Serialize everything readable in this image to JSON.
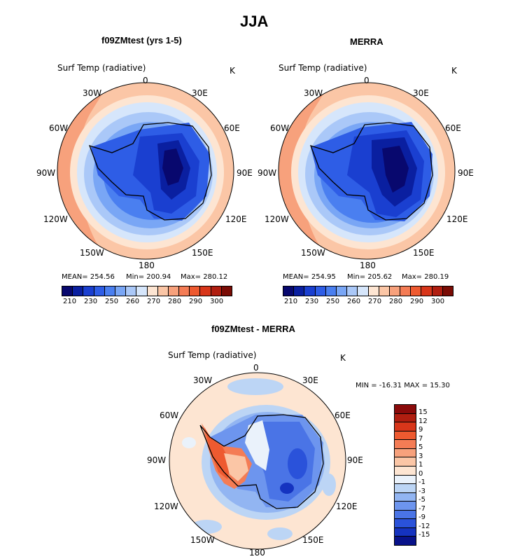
{
  "title": "JJA",
  "panels": [
    {
      "name": "f09ZMtest (yrs 1-5)",
      "variable": "Surf Temp (radiative)",
      "units": "K",
      "mean_label": "MEAN= 254.56",
      "min_label": "Min= 200.94",
      "max_label": "Max= 280.12",
      "stats": {
        "mean": 254.56,
        "min": 200.94,
        "max": 280.12
      }
    },
    {
      "name": "MERRA",
      "variable": "Surf Temp (radiative)",
      "units": "K",
      "mean_label": "MEAN= 254.95",
      "min_label": "Min= 205.62",
      "max_label": "Max= 280.19",
      "stats": {
        "mean": 254.95,
        "min": 205.62,
        "max": 280.19
      }
    },
    {
      "name": "f09ZMtest - MERRA",
      "variable": "Surf Temp (radiative)",
      "units": "K",
      "minmax_label": "MIN =  -16.31  MAX =   15.30",
      "stats": {
        "min": -16.31,
        "max": 15.3
      }
    }
  ],
  "longitude_labels": [
    "0",
    "30E",
    "60E",
    "90E",
    "120E",
    "150E",
    "180",
    "150W",
    "120W",
    "90W",
    "60W",
    "30W"
  ],
  "colorbar_abs": {
    "colors": [
      "#08086e",
      "#0a1fa0",
      "#1a3fd0",
      "#2e5de6",
      "#4a7ff0",
      "#79a6f5",
      "#aac8f8",
      "#d6e6fb",
      "#fde5d2",
      "#fbc6a6",
      "#f7a17c",
      "#f47c55",
      "#ee5a30",
      "#d8361a",
      "#b01e10",
      "#7a0c05"
    ],
    "tick_labels": [
      "210",
      "230",
      "250",
      "260",
      "270",
      "280",
      "290",
      "300"
    ]
  },
  "colorbar_diff": {
    "colors": [
      "#8a0a0a",
      "#b01e10",
      "#d8361a",
      "#ee5a30",
      "#f47c55",
      "#f7a17c",
      "#fbc6a6",
      "#fde5d2",
      "#eaf2fb",
      "#bcd5f5",
      "#92b5f2",
      "#6d95ee",
      "#4a74e6",
      "#2a52da",
      "#1533c0",
      "#08128a"
    ],
    "tick_labels": [
      "15",
      "12",
      "9",
      "7",
      "5",
      "3",
      "1",
      "0",
      "-1",
      "-3",
      "-5",
      "-7",
      "-9",
      "-12",
      "-15"
    ]
  }
}
